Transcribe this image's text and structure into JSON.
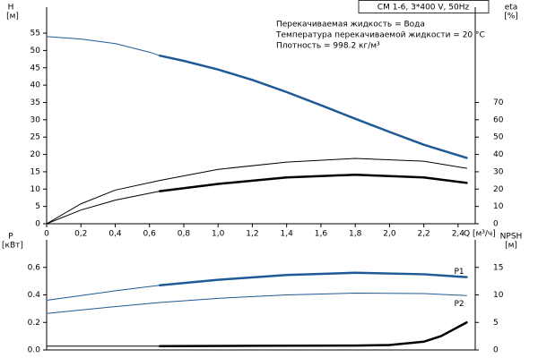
{
  "chart_data": [
    {
      "type": "line",
      "title": "CM 1-6, 3*400 V, 50Hz",
      "annotations": [
        "Перекачиваемая жидкость = Вода",
        "Температура перекачиваемой жидкости = 20 °C",
        "Плотность = 998.2 кг/м³"
      ],
      "ylabel": "H",
      "yunit": "[м]",
      "y2label": "eta",
      "y2unit": "[%]",
      "xlabel": "Q [м³/ч]",
      "xlim": [
        0,
        2.5
      ],
      "xticks": [
        0,
        {
          "value": 0.2,
          "label": "0,2"
        },
        {
          "value": 0.4,
          "label": "0,4"
        },
        {
          "value": 0.6,
          "label": "0,6"
        },
        {
          "value": 0.8,
          "label": "0,8"
        },
        {
          "value": 1.0,
          "label": "1,0"
        },
        {
          "value": 1.2,
          "label": "1,2"
        },
        {
          "value": 1.4,
          "label": "1,4"
        },
        {
          "value": 1.6,
          "label": "1,6"
        },
        {
          "value": 1.8,
          "label": "1,8"
        },
        {
          "value": 2.0,
          "label": "2,0"
        },
        {
          "value": 2.2,
          "label": "2,2"
        },
        {
          "value": 2.4,
          "label": "2,4"
        }
      ],
      "ylim": [
        0,
        62.5
      ],
      "yticks": [
        0,
        5,
        10,
        15,
        20,
        25,
        30,
        35,
        40,
        45,
        50,
        55
      ],
      "y2lim": [
        0,
        125
      ],
      "y2ticks": [
        0,
        10,
        20,
        30,
        40,
        50,
        60,
        70
      ],
      "series": [
        {
          "color": "#1f5a96",
          "width": 1,
          "x": [
            0,
            0.2,
            0.4,
            0.6,
            0.66
          ],
          "values": [
            54,
            53.3,
            52,
            49.5,
            48.5
          ]
        },
        {
          "color": "#1f5a96",
          "width": 2.5,
          "x": [
            0.66,
            0.8,
            1.0,
            1.2,
            1.4,
            1.6,
            1.8,
            2.0,
            2.2,
            2.45
          ],
          "values": [
            48.5,
            47,
            44.5,
            41.5,
            38,
            34.2,
            30.3,
            26.5,
            22.8,
            19
          ]
        },
        {
          "color": "#000000",
          "width": 1,
          "axis": "y2",
          "x": [
            0,
            0.2,
            0.4,
            0.66,
            1.0,
            1.4,
            1.8,
            2.2,
            2.45
          ],
          "values": [
            0,
            11.5,
            19.4,
            25,
            31.4,
            35.6,
            37.7,
            36.1,
            32
          ]
        },
        {
          "color": "#000000",
          "width": 1,
          "axis": "y2",
          "x": [
            0,
            0.2,
            0.4,
            0.66
          ],
          "values": [
            0,
            7.9,
            13.6,
            18.8
          ]
        },
        {
          "color": "#000000",
          "width": 2.5,
          "axis": "y2",
          "x": [
            0.66,
            1.0,
            1.4,
            1.8,
            2.2,
            2.45
          ],
          "values": [
            18.8,
            23,
            26.7,
            28.3,
            26.7,
            23.6
          ]
        }
      ]
    },
    {
      "type": "line",
      "ylabel": "P",
      "yunit": "[кВт]",
      "y2label": "NPSH",
      "y2unit": "[м]",
      "xlim": [
        0,
        2.5
      ],
      "ylim": [
        0,
        0.8
      ],
      "yticks": [
        {
          "value": 0,
          "label": "0.0"
        },
        0.2,
        0.4,
        0.6
      ],
      "y2lim": [
        0,
        20
      ],
      "y2ticks": [
        0,
        5,
        10,
        15
      ],
      "series": [
        {
          "color": "#1f5a96",
          "width": 1,
          "x": [
            0,
            0.2,
            0.4,
            0.66
          ],
          "values": [
            0.361,
            0.395,
            0.43,
            0.47
          ]
        },
        {
          "name": "P1",
          "color": "#1f5a96",
          "width": 2.5,
          "x": [
            0.66,
            1.0,
            1.4,
            1.8,
            2.2,
            2.45
          ],
          "values": [
            0.47,
            0.51,
            0.545,
            0.561,
            0.55,
            0.529
          ]
        },
        {
          "color": "#1f5a96",
          "width": 1,
          "x": [
            0,
            0.2,
            0.4,
            0.66,
            1.0,
            1.4
          ],
          "values": [
            0.265,
            0.29,
            0.315,
            0.345,
            0.375,
            0.4
          ]
        },
        {
          "name": "P2",
          "color": "#1f5a96",
          "width": 1,
          "x": [
            1.4,
            1.8,
            2.2,
            2.45
          ],
          "values": [
            0.4,
            0.413,
            0.41,
            0.395
          ]
        },
        {
          "color": "#000000",
          "width": 1,
          "axis": "y2",
          "x": [
            0,
            0.66
          ],
          "values": [
            0.7,
            0.7
          ]
        },
        {
          "color": "#000000",
          "width": 2.5,
          "axis": "y2",
          "x": [
            0.66,
            1.2,
            1.8,
            2.0,
            2.2,
            2.3,
            2.45
          ],
          "values": [
            0.7,
            0.75,
            0.8,
            0.9,
            1.5,
            2.5,
            5
          ]
        }
      ]
    }
  ]
}
